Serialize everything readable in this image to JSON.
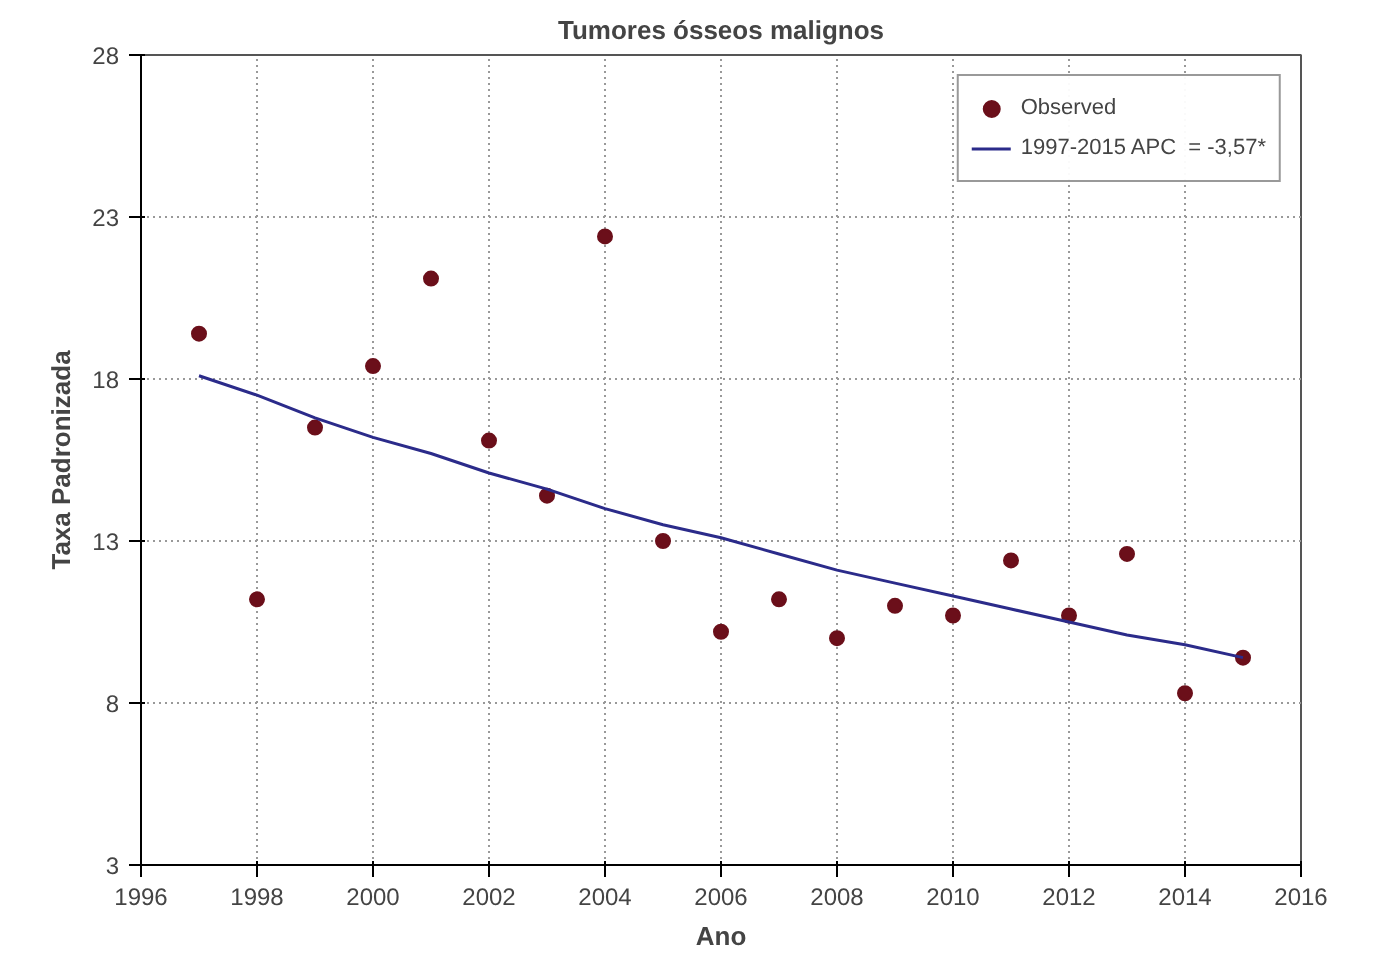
{
  "chart_data": {
    "type": "scatter",
    "title": "Tumores ósseos malignos",
    "xlabel": "Ano",
    "ylabel": "Taxa Padronizada",
    "x": [
      1997,
      1998,
      1999,
      2000,
      2001,
      2002,
      2003,
      2004,
      2005,
      2006,
      2007,
      2008,
      2009,
      2010,
      2011,
      2012,
      2013,
      2014,
      2015
    ],
    "series": [
      {
        "name": "Observed",
        "color": "#6b0f1a",
        "marker": "circle",
        "values": [
          19.4,
          11.2,
          16.5,
          18.4,
          21.1,
          16.1,
          14.4,
          22.4,
          13.0,
          10.2,
          11.2,
          10.0,
          11.0,
          10.7,
          12.4,
          10.7,
          12.6,
          8.3,
          9.4
        ]
      },
      {
        "name": "1997-2015 APC  = -3,57*",
        "type": "line",
        "color": "#2b2b8a",
        "line_style": "solid",
        "values": [
          18.1,
          17.5,
          16.8,
          16.2,
          15.7,
          15.1,
          14.6,
          14.0,
          13.5,
          13.1,
          12.6,
          12.1,
          11.7,
          11.3,
          10.9,
          10.5,
          10.1,
          9.8,
          9.4
        ]
      }
    ],
    "xlim": [
      1996,
      2016
    ],
    "xticks": [
      1996,
      1998,
      2000,
      2002,
      2004,
      2006,
      2008,
      2010,
      2012,
      2014,
      2016
    ],
    "ylim": [
      3,
      28
    ],
    "yticks": [
      3,
      8,
      13,
      18,
      23,
      28
    ],
    "grid": true,
    "legend": "top right"
  }
}
